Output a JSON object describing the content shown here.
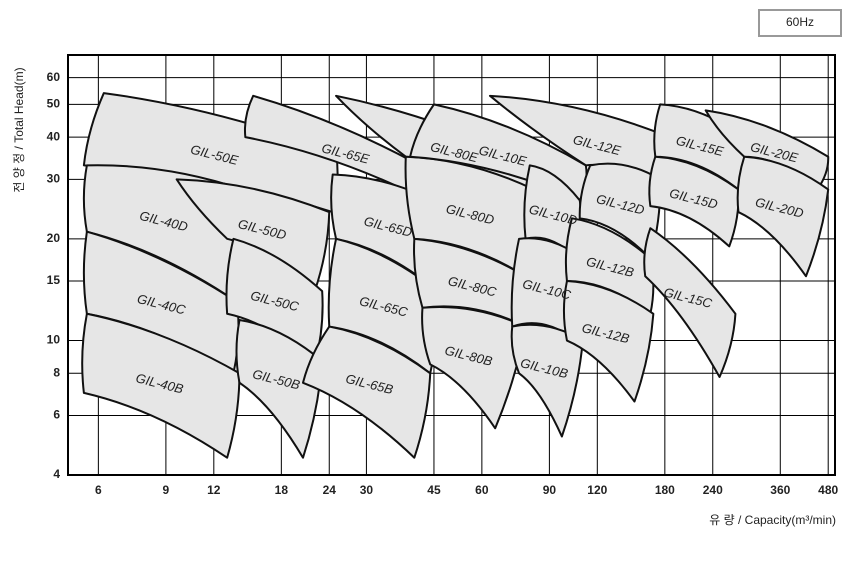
{
  "chart_data": {
    "type": "region",
    "badge": "60Hz",
    "x_label": "유 량 / Capacity(m³/min)",
    "y_label": "전 양 정 / Total Head(m)",
    "x_log": true,
    "y_log": true,
    "grid": true,
    "xlim": [
      5,
      500
    ],
    "ylim": [
      4,
      70
    ],
    "xticks": [
      6,
      9,
      12,
      18,
      24,
      30,
      45,
      60,
      90,
      120,
      180,
      240,
      360,
      480
    ],
    "yticks": [
      4,
      6,
      8,
      10,
      15,
      20,
      30,
      40,
      50,
      60
    ],
    "fill": "#e6e6e6",
    "regions": [
      {
        "name": "GIL-50E",
        "points": [
          [
            6.2,
            54
          ],
          [
            25,
            36
          ],
          [
            24.5,
            24
          ],
          [
            5.5,
            33
          ]
        ]
      },
      {
        "name": "GIL-40D",
        "points": [
          [
            5.6,
            33
          ],
          [
            14.3,
            28
          ],
          [
            13.8,
            13
          ],
          [
            5.6,
            21
          ]
        ]
      },
      {
        "name": "GIL-50D",
        "points": [
          [
            9.6,
            30
          ],
          [
            24,
            24
          ],
          [
            22,
            14
          ],
          [
            13,
            20
          ]
        ]
      },
      {
        "name": "GIL-40C",
        "points": [
          [
            5.6,
            21
          ],
          [
            13.8,
            13
          ],
          [
            13.5,
            8
          ],
          [
            5.6,
            12
          ]
        ]
      },
      {
        "name": "GIL-50C",
        "points": [
          [
            13.5,
            20
          ],
          [
            23,
            14
          ],
          [
            22,
            8.5
          ],
          [
            13,
            12
          ]
        ]
      },
      {
        "name": "GIL-40B",
        "points": [
          [
            5.6,
            12
          ],
          [
            14,
            8
          ],
          [
            13,
            4.5
          ],
          [
            5.5,
            7
          ]
        ]
      },
      {
        "name": "GIL-50B",
        "points": [
          [
            14,
            11.5
          ],
          [
            23,
            8.7
          ],
          [
            20.5,
            4.5
          ],
          [
            14,
            7.5
          ]
        ]
      },
      {
        "name": "GIL-65E",
        "points": [
          [
            15.2,
            53
          ],
          [
            48,
            30
          ],
          [
            46,
            25
          ],
          [
            14.5,
            40
          ]
        ]
      },
      {
        "name": "GIL-65D",
        "points": [
          [
            24.5,
            31
          ],
          [
            48,
            25
          ],
          [
            46,
            14
          ],
          [
            25,
            20
          ]
        ]
      },
      {
        "name": "GIL-65C",
        "points": [
          [
            25,
            20
          ],
          [
            46,
            14
          ],
          [
            44,
            8
          ],
          [
            24,
            11
          ]
        ]
      },
      {
        "name": "GIL-65B",
        "points": [
          [
            24,
            11
          ],
          [
            44,
            8
          ],
          [
            40,
            4.5
          ],
          [
            20.5,
            7.5
          ]
        ]
      },
      {
        "name": "GIL-80E",
        "points": [
          [
            25,
            53
          ],
          [
            85,
            33
          ],
          [
            82,
            27
          ],
          [
            38,
            35
          ]
        ]
      },
      {
        "name": "GIL-80D",
        "points": [
          [
            38,
            35
          ],
          [
            82,
            28
          ],
          [
            78,
            15.5
          ],
          [
            40,
            20
          ]
        ]
      },
      {
        "name": "GIL-80C",
        "points": [
          [
            40,
            20
          ],
          [
            78,
            15.5
          ],
          [
            78,
            11
          ],
          [
            42,
            12.5
          ]
        ]
      },
      {
        "name": "GIL-80B",
        "points": [
          [
            42,
            12.5
          ],
          [
            78,
            11
          ],
          [
            65,
            5.5
          ],
          [
            44,
            8.5
          ]
        ]
      },
      {
        "name": "GIL-12E",
        "points": [
          [
            63,
            53
          ],
          [
            175,
            41
          ],
          [
            165,
            28
          ],
          [
            112,
            33
          ]
        ]
      },
      {
        "name": "GIL-10E",
        "points": [
          [
            45,
            50
          ],
          [
            112,
            33
          ],
          [
            108,
            26
          ],
          [
            39,
            35
          ]
        ]
      },
      {
        "name": "GIL-10D",
        "points": [
          [
            80,
            33
          ],
          [
            108,
            26
          ],
          [
            106,
            17.5
          ],
          [
            78,
            20
          ]
        ]
      },
      {
        "name": "GIL-10C",
        "points": [
          [
            75,
            20
          ],
          [
            110,
            17.5
          ],
          [
            103,
            10.2
          ],
          [
            72,
            11
          ]
        ]
      },
      {
        "name": "GIL-10B",
        "points": [
          [
            72,
            11
          ],
          [
            110,
            10
          ],
          [
            97,
            5.2
          ],
          [
            75,
            8
          ]
        ]
      },
      {
        "name": "GIL-12D",
        "points": [
          [
            115,
            33
          ],
          [
            175,
            30
          ],
          [
            165,
            17.5
          ],
          [
            108,
            23
          ]
        ]
      },
      {
        "name": "GIL-12B",
        "points": [
          [
            103,
            23
          ],
          [
            165,
            17.5
          ],
          [
            165,
            12
          ],
          [
            100,
            15
          ]
        ]
      },
      {
        "name": "GIL-12B",
        "points": [
          [
            100,
            15
          ],
          [
            168,
            12
          ],
          [
            150,
            6.6
          ],
          [
            100,
            10
          ]
        ]
      },
      {
        "name": "GIL-15E",
        "points": [
          [
            175,
            50
          ],
          [
            290,
            40
          ],
          [
            280,
            28
          ],
          [
            170,
            35
          ]
        ]
      },
      {
        "name": "GIL-15D",
        "points": [
          [
            170,
            35
          ],
          [
            280,
            28
          ],
          [
            265,
            19
          ],
          [
            165,
            25
          ]
        ]
      },
      {
        "name": "GIL-15C",
        "points": [
          [
            165,
            21.5
          ],
          [
            275,
            12
          ],
          [
            250,
            7.8
          ],
          [
            160,
            15.5
          ]
        ]
      },
      {
        "name": "GIL-20E",
        "points": [
          [
            230,
            48
          ],
          [
            480,
            35
          ],
          [
            450,
            28
          ],
          [
            290,
            35
          ]
        ]
      },
      {
        "name": "GIL-20D",
        "points": [
          [
            290,
            35
          ],
          [
            480,
            28
          ],
          [
            420,
            15.5
          ],
          [
            280,
            24
          ]
        ]
      }
    ]
  }
}
